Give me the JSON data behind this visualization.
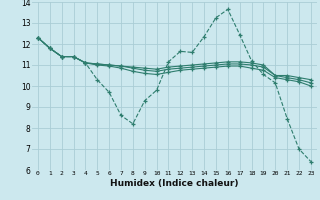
{
  "xlabel": "Humidex (Indice chaleur)",
  "background_color": "#cce8ee",
  "grid_color": "#aacdd5",
  "line_color": "#2e7d6e",
  "xlim": [
    -0.5,
    23.5
  ],
  "ylim": [
    6,
    14
  ],
  "xticks": [
    0,
    1,
    2,
    3,
    4,
    5,
    6,
    7,
    8,
    9,
    10,
    11,
    12,
    13,
    14,
    15,
    16,
    17,
    18,
    19,
    20,
    21,
    22,
    23
  ],
  "yticks": [
    6,
    7,
    8,
    9,
    10,
    11,
    12,
    13,
    14
  ],
  "series": [
    [
      12.3,
      11.8,
      11.4,
      11.4,
      11.1,
      10.3,
      9.7,
      8.6,
      8.2,
      9.3,
      9.8,
      11.15,
      11.65,
      11.6,
      12.35,
      13.25,
      13.65,
      12.45,
      11.2,
      10.55,
      10.15,
      8.45,
      7.0,
      6.4
    ],
    [
      12.3,
      11.8,
      11.4,
      11.4,
      11.1,
      11.05,
      11.0,
      10.95,
      10.9,
      10.85,
      10.8,
      10.9,
      10.95,
      11.0,
      11.05,
      11.1,
      11.15,
      11.15,
      11.1,
      11.0,
      10.5,
      10.5,
      10.4,
      10.3
    ],
    [
      12.3,
      11.8,
      11.4,
      11.4,
      11.1,
      11.05,
      11.0,
      10.95,
      10.85,
      10.75,
      10.7,
      10.8,
      10.85,
      10.9,
      10.95,
      11.0,
      11.05,
      11.05,
      11.0,
      10.9,
      10.5,
      10.4,
      10.3,
      10.15
    ],
    [
      12.3,
      11.8,
      11.4,
      11.4,
      11.1,
      11.0,
      10.95,
      10.85,
      10.7,
      10.6,
      10.55,
      10.65,
      10.75,
      10.8,
      10.85,
      10.9,
      10.95,
      10.95,
      10.85,
      10.75,
      10.4,
      10.3,
      10.2,
      10.0
    ]
  ]
}
